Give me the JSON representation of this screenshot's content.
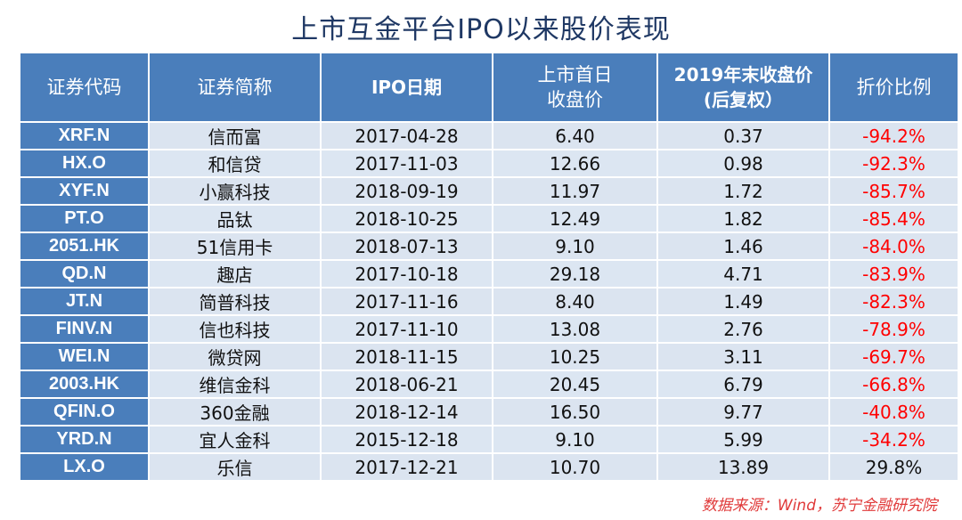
{
  "title": "上市互金平台IPO以来股价表现",
  "headers": {
    "code": "证券代码",
    "name": "证券简称",
    "ipo_date": "IPO日期",
    "first_close_l1": "上市首日",
    "first_close_l2": "收盘价",
    "ye_close_l1": "2019年末收盘价",
    "ye_close_l2": "(后复权）",
    "discount": "折价比例"
  },
  "rows": [
    {
      "code": "XRF.N",
      "name": "信而富",
      "date": "2017-04-28",
      "first": "6.40",
      "ye": "0.37",
      "disc": "-94.2%"
    },
    {
      "code": "HX.O",
      "name": "和信贷",
      "date": "2017-11-03",
      "first": "12.66",
      "ye": "0.98",
      "disc": "-92.3%"
    },
    {
      "code": "XYF.N",
      "name": "小赢科技",
      "date": "2018-09-19",
      "first": "11.97",
      "ye": "1.72",
      "disc": "-85.7%"
    },
    {
      "code": "PT.O",
      "name": "品钛",
      "date": "2018-10-25",
      "first": "12.49",
      "ye": "1.82",
      "disc": "-85.4%"
    },
    {
      "code": "2051.HK",
      "name": "51信用卡",
      "date": "2018-07-13",
      "first": "9.10",
      "ye": "1.46",
      "disc": "-84.0%"
    },
    {
      "code": "QD.N",
      "name": "趣店",
      "date": "2017-10-18",
      "first": "29.18",
      "ye": "4.71",
      "disc": "-83.9%"
    },
    {
      "code": "JT.N",
      "name": "简普科技",
      "date": "2017-11-16",
      "first": "8.40",
      "ye": "1.49",
      "disc": "-82.3%"
    },
    {
      "code": "FINV.N",
      "name": "信也科技",
      "date": "2017-11-10",
      "first": "13.08",
      "ye": "2.76",
      "disc": "-78.9%"
    },
    {
      "code": "WEI.N",
      "name": "微贷网",
      "date": "2018-11-15",
      "first": "10.25",
      "ye": "3.11",
      "disc": "-69.7%"
    },
    {
      "code": "2003.HK",
      "name": "维信金科",
      "date": "2018-06-21",
      "first": "20.45",
      "ye": "6.79",
      "disc": "-66.8%"
    },
    {
      "code": "QFIN.O",
      "name": "360金融",
      "date": "2018-12-14",
      "first": "16.50",
      "ye": "9.77",
      "disc": "-40.8%"
    },
    {
      "code": "YRD.N",
      "name": "宜人金科",
      "date": "2015-12-18",
      "first": "9.10",
      "ye": "5.99",
      "disc": "-34.2%"
    },
    {
      "code": "LX.O",
      "name": "乐信",
      "date": "2017-12-21",
      "first": "10.70",
      "ye": "13.89",
      "disc": "29.8%"
    }
  ],
  "source": "数据来源：Wind，苏宁金融研究院",
  "colors": {
    "header": "#4a7ebb",
    "cell": "#dce6f2",
    "negative": "#ff0000",
    "title": "#1f3864"
  }
}
